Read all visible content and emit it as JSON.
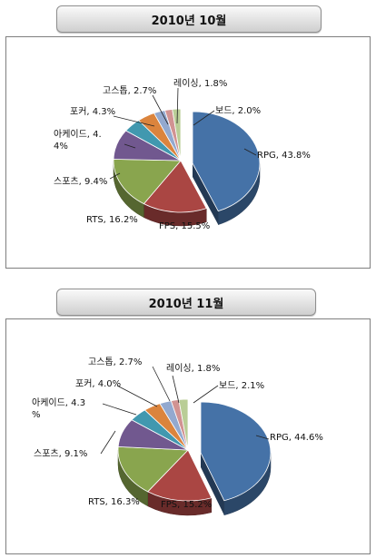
{
  "charts": [
    {
      "title": "2010년 10월"
    },
    {
      "title": "2010년 11월"
    }
  ],
  "chart_data": [
    {
      "type": "pie",
      "title": "2010년 10월",
      "slices": [
        {
          "name": "RPG",
          "value": 43.8,
          "label": "RPG, 43.8%",
          "color": "#4572a7"
        },
        {
          "name": "FPS",
          "value": 15.5,
          "label": "FPS, 15.5%",
          "color": "#aa4643"
        },
        {
          "name": "RTS",
          "value": 16.2,
          "label": "RTS, 16.2%",
          "color": "#89a54e"
        },
        {
          "name": "스포츠",
          "value": 9.4,
          "label": "스포츠, 9.4%",
          "color": "#71588f"
        },
        {
          "name": "아케이드",
          "value": 4.4,
          "label": "아케이드, 4.4%",
          "label_lines": [
            "아케이드, 4.",
            "4%"
          ],
          "color": "#4198af"
        },
        {
          "name": "포커",
          "value": 4.3,
          "label": "포커, 4.3%",
          "color": "#db843d"
        },
        {
          "name": "고스톱",
          "value": 2.7,
          "label": "고스톱, 2.7%",
          "color": "#93a9cf"
        },
        {
          "name": "레이싱",
          "value": 1.8,
          "label": "레이싱, 1.8%",
          "color": "#d19392"
        },
        {
          "name": "보드",
          "value": 2.0,
          "label": "보드, 2.0%",
          "color": "#b9cd96"
        }
      ]
    },
    {
      "type": "pie",
      "title": "2010년 11월",
      "slices": [
        {
          "name": "RPG",
          "value": 44.6,
          "label": "RPG, 44.6%",
          "color": "#4572a7"
        },
        {
          "name": "FPS",
          "value": 15.2,
          "label": "FPS, 15.2%",
          "color": "#aa4643"
        },
        {
          "name": "RTS",
          "value": 16.3,
          "label": "RTS, 16.3%",
          "color": "#89a54e"
        },
        {
          "name": "스포츠",
          "value": 9.1,
          "label": "스포츠, 9.1%",
          "color": "#71588f"
        },
        {
          "name": "아케이드",
          "value": 4.3,
          "label": "아케이드, 4.3%",
          "label_lines": [
            "아케이드, 4.3",
            "%"
          ],
          "color": "#4198af"
        },
        {
          "name": "포커",
          "value": 4.0,
          "label": "포커, 4.0%",
          "color": "#db843d"
        },
        {
          "name": "고스톱",
          "value": 2.7,
          "label": "고스톱, 2.7%",
          "color": "#93a9cf"
        },
        {
          "name": "레이싱",
          "value": 1.8,
          "label": "레이싱, 1.8%",
          "color": "#d19392"
        },
        {
          "name": "보드",
          "value": 2.1,
          "label": "보드, 2.1%",
          "color": "#b9cd96"
        }
      ]
    }
  ]
}
